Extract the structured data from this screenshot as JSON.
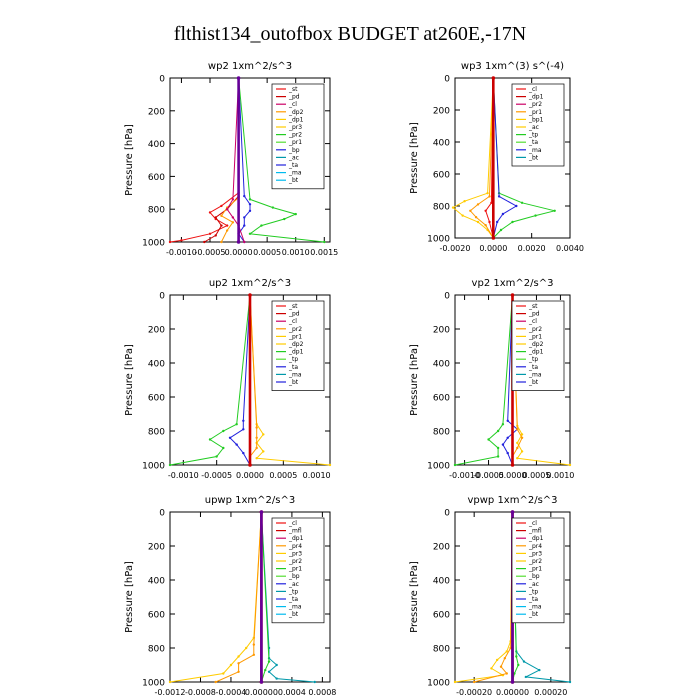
{
  "figure": {
    "title": "flthist134_outofbox  BUDGET at260E,-17N"
  },
  "colors": {
    "red": "#ee1111",
    "darkred": "#cc0000",
    "orange": "#ff9900",
    "gold": "#ffcc00",
    "green": "#22cc22",
    "green2": "#55dd33",
    "blue": "#2222dd",
    "cyan": "#00bbee",
    "teal": "#0099aa",
    "purple": "#660099",
    "magenta": "#cc0066",
    "frame": "#000000"
  },
  "chart_data": [
    {
      "type": "line",
      "title": "wp2   1xm^2/s^3",
      "ylabel": "Pressure  [hPa]",
      "ylim": [
        1000,
        0
      ],
      "xlim": [
        -0.0012,
        0.0016
      ],
      "xticks": [
        -0.001,
        -0.0005,
        0.0,
        0.0005,
        0.001,
        0.0015
      ],
      "xtick_labels": [
        "-0.0010",
        "-0.0005",
        "0.0000",
        "0.0005",
        "0.0010",
        "0.0015"
      ],
      "yticks": [
        0,
        200,
        400,
        600,
        800,
        1000
      ],
      "legend": [
        "_st",
        "_pd",
        "_cl",
        "_dp2",
        "_dp1",
        "_pr3",
        "_pr2",
        "_pr1",
        "_bp",
        "_ac",
        "_ta",
        "_ma",
        "_bt"
      ],
      "legend_position": "top-right",
      "series": [
        {
          "color": "red",
          "p": [
            0,
            700,
            780,
            820,
            860,
            900,
            950,
            990,
            1000
          ],
          "v": [
            0,
            0,
            -0.0003,
            -0.0005,
            -0.0004,
            -0.0002,
            -0.0005,
            -0.001,
            -0.0012
          ]
        },
        {
          "color": "darkred",
          "p": [
            0,
            720,
            800,
            850,
            900,
            960,
            1000
          ],
          "v": [
            0,
            0,
            -0.0002,
            -0.0004,
            -0.0003,
            -0.0004,
            -0.0006
          ]
        },
        {
          "color": "orange",
          "p": [
            0,
            730,
            790,
            840,
            880,
            930,
            1000
          ],
          "v": [
            0,
            0,
            -0.0002,
            -0.0003,
            -0.0001,
            -0.0002,
            -0.0003
          ]
        },
        {
          "color": "green",
          "p": [
            0,
            740,
            790,
            830,
            860,
            900,
            950,
            1000
          ],
          "v": [
            0,
            0.0002,
            0.0006,
            0.001,
            0.0008,
            0.0004,
            0.0002,
            0.0015
          ]
        },
        {
          "color": "blue",
          "p": [
            0,
            720,
            770,
            810,
            850,
            900,
            950,
            1000
          ],
          "v": [
            0,
            0.0001,
            0.0002,
            0.0002,
            0.0001,
            0.0001,
            0.0,
            0.0001
          ]
        },
        {
          "color": "magenta",
          "p": [
            0,
            740,
            800,
            850,
            900,
            1000
          ],
          "v": [
            0,
            -0.0001,
            -0.0002,
            -0.0001,
            0.0,
            0.0001
          ]
        },
        {
          "color": "purple",
          "p": [
            0,
            1000
          ],
          "v": [
            0,
            0
          ],
          "thick": true
        }
      ]
    },
    {
      "type": "line",
      "title": "wp3   1xm^(3) s^(-4)",
      "ylabel": "Pressure  [hPa]",
      "ylim": [
        1000,
        0
      ],
      "xlim": [
        -0.002,
        0.004
      ],
      "xticks": [
        -0.002,
        0.0,
        0.002,
        0.004
      ],
      "xtick_labels": [
        "-0.0020",
        "0.0000",
        "0.0020",
        "0.0040"
      ],
      "yticks": [
        0,
        200,
        400,
        600,
        800,
        1000
      ],
      "legend": [
        "_cl",
        "_dp1",
        "_pr2",
        "_pr1",
        "_bp1",
        "_ac",
        "_tp",
        "_ta",
        "_ma",
        "_bt"
      ],
      "legend_position": "top-right",
      "series": [
        {
          "color": "gold",
          "p": [
            0,
            720,
            770,
            810,
            860,
            900,
            950,
            1000
          ],
          "v": [
            0,
            -0.0003,
            -0.0015,
            -0.0021,
            -0.0016,
            -0.0008,
            -0.0003,
            0
          ]
        },
        {
          "color": "orange",
          "p": [
            0,
            740,
            790,
            830,
            870,
            920,
            1000
          ],
          "v": [
            0,
            -0.0002,
            -0.0008,
            -0.0012,
            -0.0009,
            -0.0004,
            0
          ]
        },
        {
          "color": "green",
          "p": [
            0,
            720,
            780,
            830,
            860,
            900,
            950,
            1000
          ],
          "v": [
            0,
            0.0003,
            0.0015,
            0.0032,
            0.0022,
            0.001,
            0.0004,
            0
          ]
        },
        {
          "color": "blue",
          "p": [
            0,
            740,
            800,
            850,
            900,
            1000
          ],
          "v": [
            0,
            0.0003,
            0.0012,
            0.0005,
            0.0002,
            0
          ]
        },
        {
          "color": "red",
          "p": [
            0,
            780,
            830,
            900,
            1000
          ],
          "v": [
            0,
            -0.0001,
            -0.0004,
            -0.0002,
            0
          ]
        },
        {
          "color": "darkred",
          "p": [
            0,
            1000
          ],
          "v": [
            0,
            0
          ],
          "thick": true
        }
      ]
    },
    {
      "type": "line",
      "title": "up2   1xm^2/s^3",
      "ylabel": "Pressure  [hPa]",
      "ylim": [
        1000,
        0
      ],
      "xlim": [
        -0.0012,
        0.0012
      ],
      "xticks": [
        -0.001,
        -0.0005,
        0.0,
        0.0005,
        0.001
      ],
      "xtick_labels": [
        "-0.0010",
        "-0.0005",
        "0.0000",
        "0.0005",
        "0.0010"
      ],
      "yticks": [
        0,
        200,
        400,
        600,
        800,
        1000
      ],
      "legend": [
        "_st",
        "_pd",
        "_cl",
        "_pr2",
        "_pr1",
        "_dp2",
        "_dp1",
        "_tp",
        "_ta",
        "_ma",
        "_bt"
      ],
      "legend_position": "top-right",
      "series": [
        {
          "color": "green",
          "p": [
            0,
            760,
            800,
            850,
            900,
            950,
            1000
          ],
          "v": [
            0,
            -0.0002,
            -0.0004,
            -0.0006,
            -0.0004,
            -0.0005,
            -0.0012
          ]
        },
        {
          "color": "blue",
          "p": [
            0,
            740,
            790,
            840,
            880,
            930,
            1000
          ],
          "v": [
            0,
            -0.0001,
            -0.0001,
            -0.0003,
            -0.0002,
            -0.0001,
            0
          ]
        },
        {
          "color": "gold",
          "p": [
            0,
            760,
            820,
            870,
            920,
            960,
            1000
          ],
          "v": [
            0,
            0.0001,
            0.0002,
            0.0001,
            0.0002,
            0.0001,
            0.0012
          ]
        },
        {
          "color": "orange",
          "p": [
            0,
            780,
            840,
            900,
            950,
            1000
          ],
          "v": [
            0,
            0.0001,
            0.0001,
            0.0001,
            0.0,
            0
          ]
        },
        {
          "color": "darkred",
          "p": [
            0,
            1000
          ],
          "v": [
            0,
            0
          ],
          "thick": true
        }
      ]
    },
    {
      "type": "line",
      "title": "vp2   1xm^2/s^3",
      "ylabel": "Pressure  [hPa]",
      "ylim": [
        1000,
        0
      ],
      "xlim": [
        -0.0012,
        0.0012
      ],
      "xticks": [
        -0.001,
        -0.0005,
        0.0,
        0.0005,
        0.001
      ],
      "xtick_labels": [
        "-0.0010",
        "-0.0005",
        "0.0000",
        "0.0005",
        "0.0010"
      ],
      "yticks": [
        0,
        200,
        400,
        600,
        800,
        1000
      ],
      "legend": [
        "_st",
        "_pd",
        "_cl",
        "_pr2",
        "_pr1",
        "_dp2",
        "_dp1",
        "_tp",
        "_ta",
        "_ma",
        "_bt"
      ],
      "legend_position": "top-right",
      "series": [
        {
          "color": "green",
          "p": [
            0,
            760,
            800,
            850,
            900,
            950,
            1000
          ],
          "v": [
            0,
            -0.0002,
            -0.0003,
            -0.0005,
            -0.0003,
            -0.0003,
            -0.0012
          ]
        },
        {
          "color": "blue",
          "p": [
            0,
            740,
            790,
            840,
            880,
            930,
            1000
          ],
          "v": [
            0,
            -0.0001,
            0.0001,
            -0.0001,
            -0.0002,
            -0.0001,
            0
          ]
        },
        {
          "color": "gold",
          "p": [
            0,
            770,
            820,
            870,
            920,
            960,
            1000
          ],
          "v": [
            0,
            0.0001,
            0.0002,
            0.0001,
            0.0002,
            0.0001,
            0.0012
          ]
        },
        {
          "color": "orange",
          "p": [
            0,
            790,
            840,
            900,
            950,
            1000
          ],
          "v": [
            0,
            0.0001,
            0.0002,
            0.0001,
            0.0,
            0
          ]
        },
        {
          "color": "darkred",
          "p": [
            0,
            1000
          ],
          "v": [
            0,
            0
          ],
          "thick": true
        }
      ]
    },
    {
      "type": "line",
      "title": "upwp   1xm^2/s^3",
      "ylabel": "Pressure  [hPa]",
      "ylim": [
        1000,
        0
      ],
      "xlim": [
        -0.0012,
        0.0009
      ],
      "xticks": [
        -0.0012,
        -0.0008,
        -0.0004,
        0.0,
        0.0004,
        0.0008
      ],
      "xtick_labels": [
        "-0.0012",
        "-0.0008",
        "-0.0004",
        "0.00000",
        "0.0004",
        "0.0008"
      ],
      "yticks": [
        0,
        200,
        400,
        600,
        800,
        1000
      ],
      "legend": [
        "_cl",
        "_mfl",
        "_dp1",
        "_pr4",
        "_pr3",
        "_pr2",
        "_pr1",
        "_bp",
        "_ac",
        "_tp",
        "_ta",
        "_ma",
        "_bt"
      ],
      "legend_position": "top-right",
      "series": [
        {
          "color": "gold",
          "p": [
            0,
            740,
            800,
            850,
            900,
            950,
            1000
          ],
          "v": [
            0,
            -0.0001,
            -0.0002,
            -0.0003,
            -0.0004,
            -0.0005,
            -0.0012
          ]
        },
        {
          "color": "orange",
          "p": [
            0,
            780,
            840,
            890,
            940,
            1000
          ],
          "v": [
            0,
            -0.0001,
            -0.0001,
            -0.0003,
            -0.0003,
            -0.0006
          ]
        },
        {
          "color": "teal",
          "p": [
            0,
            800,
            860,
            900,
            940,
            980,
            1000
          ],
          "v": [
            0,
            0.0001,
            0.0001,
            0.0002,
            0.0001,
            0.0002,
            0.0007
          ]
        },
        {
          "color": "green",
          "p": [
            0,
            880,
            930,
            1000
          ],
          "v": [
            0,
            0.0001,
            5e-05,
            0
          ]
        },
        {
          "color": "darkred",
          "p": [
            0,
            1000
          ],
          "v": [
            0,
            0
          ],
          "thick": true
        },
        {
          "color": "purple",
          "p": [
            0,
            1000
          ],
          "v": [
            0,
            0
          ],
          "thick": true
        }
      ]
    },
    {
      "type": "line",
      "title": "vpwp   1xm^2/s^3",
      "ylabel": "Pressure  [hPa]",
      "ylim": [
        1000,
        0
      ],
      "xlim": [
        -0.0003,
        0.0003
      ],
      "xticks": [
        -0.0002,
        0.0,
        0.0002
      ],
      "xtick_labels": [
        "-0.00020",
        "0.00000",
        "0.00020"
      ],
      "yticks": [
        0,
        200,
        400,
        600,
        800,
        1000
      ],
      "legend": [
        "_cl",
        "_mfl",
        "_dp1",
        "_pr4",
        "_pr3",
        "_pr2",
        "_pr1",
        "_bp",
        "_ac",
        "_tp",
        "_ta",
        "_ma",
        "_bt"
      ],
      "legend_position": "top-right",
      "series": [
        {
          "color": "gold",
          "p": [
            0,
            760,
            820,
            870,
            920,
            960,
            1000
          ],
          "v": [
            0,
            -1e-05,
            -3e-05,
            -8e-05,
            -0.00011,
            -5e-05,
            -0.0003
          ]
        },
        {
          "color": "orange",
          "p": [
            0,
            800,
            860,
            910,
            950,
            1000
          ],
          "v": [
            0,
            -1e-05,
            -4e-05,
            -6e-05,
            -3e-05,
            -0.0002
          ]
        },
        {
          "color": "teal",
          "p": [
            0,
            820,
            880,
            930,
            970,
            1000
          ],
          "v": [
            0,
            2e-05,
            6e-05,
            0.00014,
            7e-05,
            0.0003
          ]
        },
        {
          "color": "green",
          "p": [
            0,
            850,
            900,
            950,
            1000
          ],
          "v": [
            0,
            2e-05,
            3e-05,
            1e-05,
            0
          ]
        },
        {
          "color": "magenta",
          "p": [
            0,
            150,
            230,
            260,
            300,
            1000
          ],
          "v": [
            0,
            0,
            1e-05,
            1.5e-05,
            0,
            0
          ]
        },
        {
          "color": "darkred",
          "p": [
            0,
            1000
          ],
          "v": [
            0,
            0
          ],
          "thick": true
        },
        {
          "color": "purple",
          "p": [
            0,
            1000
          ],
          "v": [
            0,
            0
          ],
          "thick": true
        }
      ]
    }
  ]
}
